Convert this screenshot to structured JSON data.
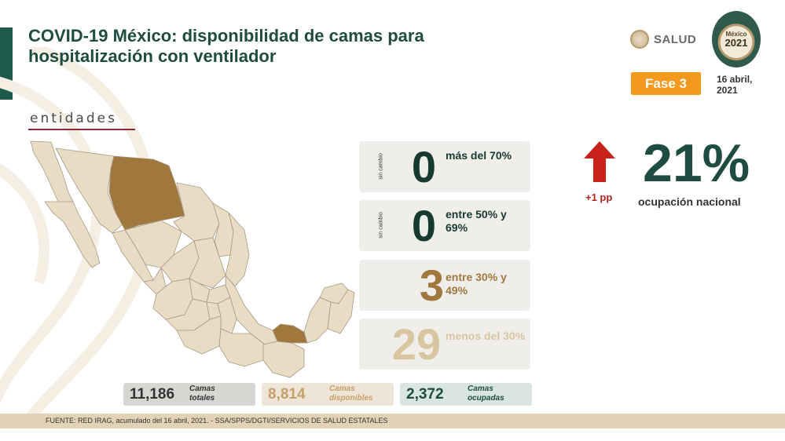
{
  "header": {
    "title": "COVID-19 México: disponibilidad de camas para hospitalización con ventilador",
    "section_label": "entidades"
  },
  "logos": {
    "salud_text": "SALUD",
    "mexico_2021_top": "México",
    "mexico_2021_year": "2021"
  },
  "phase": {
    "label": "Fase 3",
    "date_line1": "16 abril,",
    "date_line2": "2021"
  },
  "categories": [
    {
      "side_label": "sin cambio",
      "value": "0",
      "description": "más del 70%"
    },
    {
      "side_label": "sin cambio",
      "value": "0",
      "description": "entre 50% y 69%"
    },
    {
      "side_label": "",
      "value": "3",
      "description": "entre 30% y 49%"
    },
    {
      "side_label": "",
      "value": "29",
      "description": "menos del 30%"
    }
  ],
  "national": {
    "change": "+1 pp",
    "occupancy": "21%",
    "occupancy_label": "ocupación nacional",
    "arrow_icon": "arrow-up-icon",
    "arrow_color": "#c8231b"
  },
  "stats": [
    {
      "value": "11,186",
      "label_line1": "Camas",
      "label_line2": "totales"
    },
    {
      "value": "8,814",
      "label_line1": "Camas",
      "label_line2": "disponibles"
    },
    {
      "value": "2,372",
      "label_line1": "Camas",
      "label_line2": "ocupadas"
    }
  ],
  "footer": {
    "source": "FUENTE: RED IRAG, acumulado del 16 abril, 2021. -  SSA/SPPS/DGTI/SERVICIOS DE SALUD ESTATALES"
  },
  "colors": {
    "title": "#1e4c40",
    "state_default": "#e8dcc4",
    "state_30_49": "#a0773c",
    "phase_badge": "#f39a1e"
  }
}
